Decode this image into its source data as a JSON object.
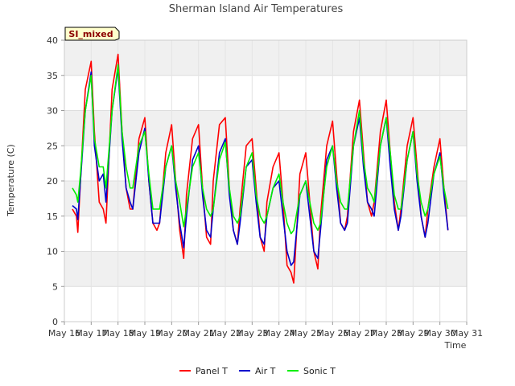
{
  "chart_data": {
    "type": "line",
    "title": "Sherman Island Air Temperatures",
    "xlabel": "Time",
    "ylabel": "Temperature (C)",
    "badge": "SI_mixed",
    "ylim": [
      0,
      40
    ],
    "yticks": [
      0,
      5,
      10,
      15,
      20,
      25,
      30,
      35,
      40
    ],
    "xlim": [
      16,
      31
    ],
    "xticks": [
      {
        "v": 16,
        "label": "May 16"
      },
      {
        "v": 17,
        "label": "May 17"
      },
      {
        "v": 18,
        "label": "May 18"
      },
      {
        "v": 19,
        "label": "May 19"
      },
      {
        "v": 20,
        "label": "May 20"
      },
      {
        "v": 21,
        "label": "May 21"
      },
      {
        "v": 22,
        "label": "May 22"
      },
      {
        "v": 23,
        "label": "May 23"
      },
      {
        "v": 24,
        "label": "May 24"
      },
      {
        "v": 25,
        "label": "May 25"
      },
      {
        "v": 26,
        "label": "May 26"
      },
      {
        "v": 27,
        "label": "May 27"
      },
      {
        "v": 28,
        "label": "May 28"
      },
      {
        "v": 29,
        "label": "May 29"
      },
      {
        "v": 30,
        "label": "May 30"
      },
      {
        "v": 31,
        "label": "May 31"
      }
    ],
    "grid": true,
    "legend_position": "bottom",
    "series": [
      {
        "name": "Panel T",
        "color": "#ff0000",
        "x": [
          16.3,
          16.45,
          16.5,
          16.6,
          16.78,
          17.0,
          17.12,
          17.3,
          17.45,
          17.55,
          17.78,
          18.0,
          18.15,
          18.3,
          18.45,
          18.55,
          18.78,
          19.0,
          19.15,
          19.3,
          19.45,
          19.55,
          19.78,
          20.0,
          20.15,
          20.3,
          20.45,
          20.55,
          20.78,
          21.0,
          21.15,
          21.3,
          21.45,
          21.55,
          21.78,
          22.0,
          22.15,
          22.3,
          22.45,
          22.55,
          22.78,
          23.0,
          23.15,
          23.3,
          23.45,
          23.55,
          23.78,
          24.0,
          24.15,
          24.3,
          24.45,
          24.55,
          24.78,
          25.0,
          25.15,
          25.3,
          25.45,
          25.55,
          25.78,
          26.0,
          26.15,
          26.3,
          26.45,
          26.55,
          26.78,
          27.0,
          27.15,
          27.3,
          27.45,
          27.55,
          27.78,
          28.0,
          28.15,
          28.3,
          28.45,
          28.55,
          28.78,
          29.0,
          29.15,
          29.3,
          29.45,
          29.55,
          29.78,
          30.0,
          30.15,
          30.3
        ],
        "y": [
          16,
          15,
          12.7,
          20,
          33,
          37,
          27,
          17,
          16,
          14,
          33,
          38,
          27,
          19,
          16,
          16,
          26,
          29,
          20,
          14,
          13,
          14,
          24,
          28,
          20,
          13,
          9,
          18,
          26,
          28,
          19,
          12,
          11,
          20,
          28,
          29,
          19,
          13,
          11,
          16,
          25,
          26,
          19,
          12,
          10,
          17,
          22,
          24,
          17,
          8,
          7,
          5.5,
          21,
          24,
          17,
          10,
          7.5,
          15,
          25,
          28.5,
          21,
          14,
          13,
          15,
          27,
          31.5,
          24,
          17,
          15,
          17,
          27,
          31.5,
          24,
          17,
          13,
          16,
          25,
          29,
          22,
          15,
          12,
          16,
          22,
          26,
          19,
          13
        ]
      },
      {
        "name": "Air T",
        "color": "#0000cc",
        "x": [
          16.3,
          16.45,
          16.5,
          16.6,
          16.78,
          17.0,
          17.12,
          17.3,
          17.45,
          17.55,
          17.78,
          18.0,
          18.15,
          18.3,
          18.45,
          18.55,
          18.78,
          19.0,
          19.15,
          19.3,
          19.45,
          19.55,
          19.78,
          20.0,
          20.15,
          20.3,
          20.45,
          20.55,
          20.78,
          21.0,
          21.15,
          21.3,
          21.45,
          21.55,
          21.78,
          22.0,
          22.15,
          22.3,
          22.45,
          22.55,
          22.78,
          23.0,
          23.15,
          23.3,
          23.45,
          23.55,
          23.78,
          24.0,
          24.15,
          24.3,
          24.45,
          24.55,
          24.78,
          25.0,
          25.15,
          25.3,
          25.45,
          25.55,
          25.78,
          26.0,
          26.15,
          26.3,
          26.45,
          26.55,
          26.78,
          27.0,
          27.15,
          27.3,
          27.45,
          27.55,
          27.78,
          28.0,
          28.15,
          28.3,
          28.45,
          28.55,
          28.78,
          29.0,
          29.15,
          29.3,
          29.45,
          29.55,
          29.78,
          30.0,
          30.15,
          30.3
        ],
        "y": [
          16.5,
          16,
          14.5,
          20,
          30,
          35.5,
          25,
          20,
          21,
          17,
          30,
          36,
          26,
          19,
          17,
          16,
          24,
          27.5,
          20,
          14,
          14,
          14,
          22,
          25,
          19,
          14,
          10.5,
          15,
          23,
          25,
          18,
          13,
          12,
          16,
          24,
          26,
          18,
          13,
          11,
          14,
          22,
          23,
          17,
          12,
          11,
          15,
          19,
          20,
          15,
          10,
          8,
          8.5,
          18,
          20,
          15,
          10,
          9,
          13,
          23,
          25,
          19,
          14,
          13,
          14,
          25,
          29,
          22,
          17,
          16,
          15,
          25,
          29,
          22,
          16,
          13,
          15,
          23,
          27,
          20,
          15,
          12,
          14,
          21,
          24,
          18,
          13
        ]
      },
      {
        "name": "Sonic T",
        "color": "#00ee00",
        "x": [
          16.3,
          16.45,
          16.5,
          16.6,
          16.78,
          17.0,
          17.12,
          17.3,
          17.45,
          17.55,
          17.78,
          18.0,
          18.15,
          18.3,
          18.45,
          18.55,
          18.78,
          19.0,
          19.15,
          19.3,
          19.45,
          19.55,
          19.78,
          20.0,
          20.15,
          20.3,
          20.45,
          20.55,
          20.78,
          21.0,
          21.15,
          21.3,
          21.45,
          21.55,
          21.78,
          22.0,
          22.15,
          22.3,
          22.45,
          22.55,
          22.78,
          23.0,
          23.15,
          23.3,
          23.45,
          23.55,
          23.78,
          24.0,
          24.15,
          24.3,
          24.45,
          24.55,
          24.78,
          25.0,
          25.15,
          25.3,
          25.45,
          25.55,
          25.78,
          26.0,
          26.15,
          26.3,
          26.45,
          26.55,
          26.78,
          27.0,
          27.15,
          27.3,
          27.45,
          27.55,
          27.78,
          28.0,
          28.15,
          28.3,
          28.45,
          28.55,
          28.78,
          29.0,
          29.15,
          29.3,
          29.45,
          29.55,
          29.78,
          30.0,
          30.15,
          30.3
        ],
        "y": [
          19,
          18,
          17,
          21,
          30,
          35,
          26,
          22,
          22,
          19,
          30,
          36.5,
          27,
          22,
          19,
          19,
          25,
          27,
          21,
          16,
          16,
          16,
          22,
          25,
          20,
          17,
          13.5,
          16,
          22,
          24,
          19,
          16,
          15,
          16,
          23,
          25.5,
          19,
          15,
          14,
          15,
          22,
          24,
          18,
          15,
          14,
          15,
          19,
          21,
          17,
          14,
          12.5,
          13,
          18,
          20,
          17,
          14,
          13,
          14,
          22,
          25,
          20,
          17,
          16,
          16,
          25,
          30,
          23,
          19,
          18,
          17,
          25,
          29,
          24,
          18,
          16,
          16,
          23,
          27,
          21,
          17,
          15,
          16,
          21,
          23.5,
          19,
          16
        ]
      }
    ]
  }
}
